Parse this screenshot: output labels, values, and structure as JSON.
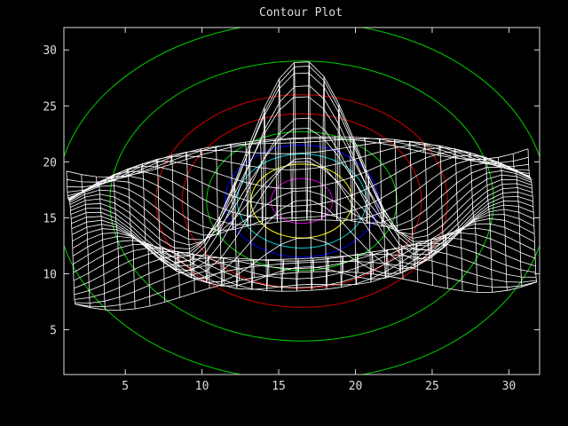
{
  "chart_data": {
    "type": "contour",
    "title": "Contour Plot",
    "xlabel": "",
    "ylabel": "",
    "xlim": [
      1,
      32
    ],
    "ylim": [
      1,
      32
    ],
    "xticks": [
      5,
      10,
      15,
      20,
      25,
      30
    ],
    "yticks": [
      5,
      10,
      15,
      20,
      25,
      30
    ],
    "grid": false,
    "legend": "none",
    "surface": {
      "function": "sinc-like ripple with central peak",
      "center": [
        16.5,
        16.5
      ],
      "grid_size": [
        32,
        32
      ],
      "mesh_color": "#ffffff"
    },
    "contours": [
      {
        "level": 1,
        "color": "#00d000",
        "center": [
          16.5,
          16.5
        ],
        "rx_units": 16.0,
        "ry_units": 16.0
      },
      {
        "level": 2,
        "color": "#00d000",
        "center": [
          16.5,
          16.5
        ],
        "rx_units": 12.5,
        "ry_units": 12.5
      },
      {
        "level": 3,
        "color": "#d00000",
        "center": [
          16.5,
          16.5
        ],
        "rx_units": 9.5,
        "ry_units": 9.5
      },
      {
        "level": 4,
        "color": "#d00000",
        "center": [
          16.5,
          16.5
        ],
        "rx_units": 7.8,
        "ry_units": 7.8
      },
      {
        "level": 5,
        "color": "#00d000",
        "center": [
          16.5,
          16.5
        ],
        "rx_units": 6.2,
        "ry_units": 6.2
      },
      {
        "level": 6,
        "color": "#0000ff",
        "center": [
          16.5,
          16.5
        ],
        "rx_units": 5.0,
        "ry_units": 5.0
      },
      {
        "level": 7,
        "color": "#00d0d0",
        "center": [
          16.5,
          16.5
        ],
        "rx_units": 4.2,
        "ry_units": 4.2
      },
      {
        "level": 8,
        "color": "#ffff00",
        "center": [
          16.5,
          16.5
        ],
        "rx_units": 3.3,
        "ry_units": 3.3
      },
      {
        "level": 9,
        "color": "#d000d0",
        "center": [
          16.5,
          16.5
        ],
        "rx_units": 2.0,
        "ry_units": 2.0
      }
    ]
  },
  "colors": {
    "background": "#000000",
    "axis": "#dcdcdc",
    "mesh": "#ffffff"
  }
}
